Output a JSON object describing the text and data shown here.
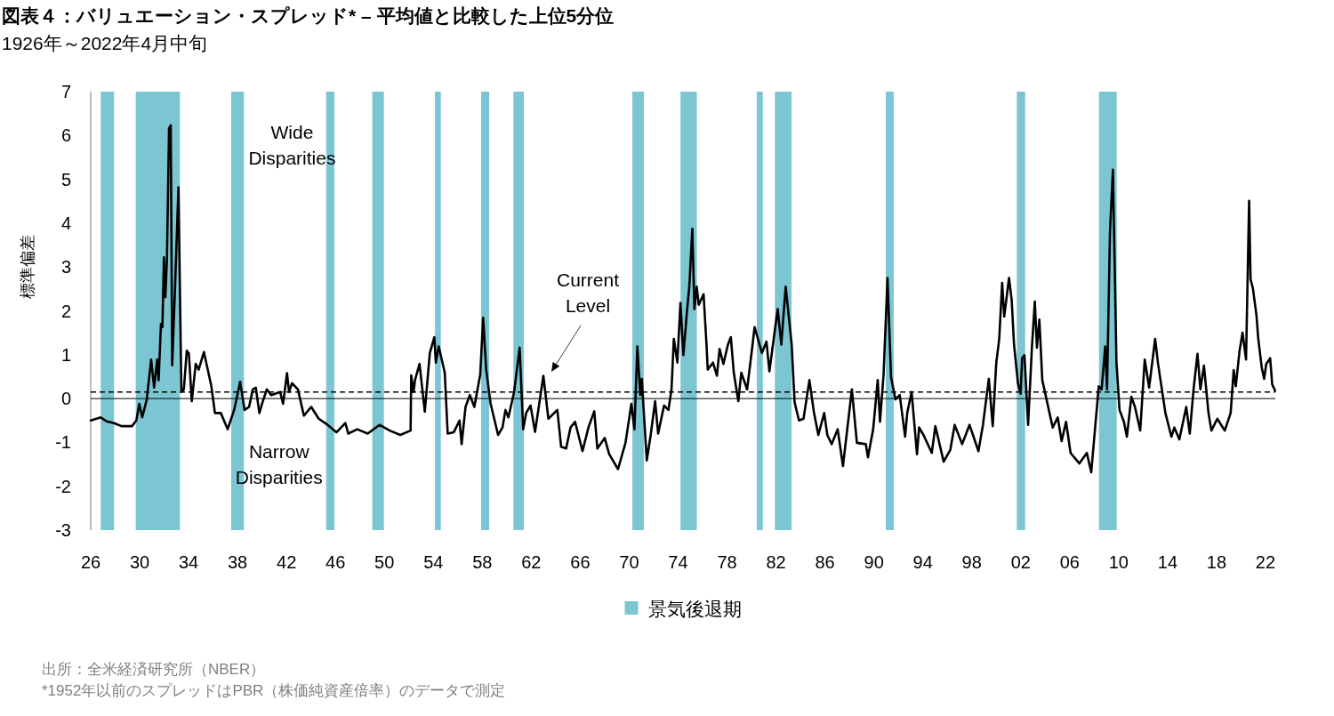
{
  "chart_data": {
    "type": "line",
    "title": "図表４：バリュエーション・スプレッド* – 平均値と比較した上位5分位",
    "subtitle": "1926年～2022年4月中旬",
    "ylabel": "標準偏差",
    "x": [
      1926.0,
      1926.82,
      1927.31,
      1927.91,
      1928.52,
      1929.37,
      1929.73,
      1929.97,
      1930.21,
      1930.58,
      1930.94,
      1931.18,
      1931.43,
      1931.55,
      1931.74,
      1931.86,
      1931.98,
      1932.1,
      1932.23,
      1932.4,
      1932.54,
      1932.66,
      1932.88,
      1933.17,
      1933.41,
      1933.61,
      1933.85,
      1934.02,
      1934.26,
      1934.58,
      1934.82,
      1935.25,
      1935.54,
      1935.86,
      1936.15,
      1936.63,
      1937.19,
      1937.72,
      1938.04,
      1938.21,
      1938.57,
      1938.94,
      1939.25,
      1939.49,
      1939.78,
      1940.03,
      1940.39,
      1940.75,
      1941.48,
      1941.72,
      1942.04,
      1942.21,
      1942.45,
      1942.93,
      1943.42,
      1944.02,
      1944.63,
      1945.36,
      1946.08,
      1946.81,
      1947.05,
      1947.78,
      1948.63,
      1949.6,
      1950.44,
      1951.29,
      1952.14,
      1952.19,
      1952.38,
      1952.5,
      1952.87,
      1953.3,
      1953.71,
      1954.08,
      1954.2,
      1954.44,
      1954.93,
      1955.17,
      1955.66,
      1956.14,
      1956.31,
      1956.63,
      1956.98,
      1957.35,
      1957.83,
      1958.07,
      1958.32,
      1958.68,
      1959.29,
      1959.65,
      1959.89,
      1960.13,
      1960.6,
      1961.05,
      1961.34,
      1961.58,
      1961.94,
      1962.31,
      1962.99,
      1963.4,
      1964.13,
      1964.44,
      1964.85,
      1965.21,
      1965.58,
      1966.19,
      1966.67,
      1967.15,
      1967.4,
      1968.0,
      1968.37,
      1969.09,
      1969.7,
      1970.18,
      1970.43,
      1970.67,
      1970.91,
      1971.03,
      1971.44,
      1971.76,
      1972.12,
      1972.37,
      1972.85,
      1973.21,
      1973.46,
      1973.65,
      1973.94,
      1974.19,
      1974.43,
      1974.72,
      1974.92,
      1975.16,
      1975.33,
      1975.52,
      1975.69,
      1976.08,
      1976.32,
      1976.42,
      1976.85,
      1977.17,
      1977.39,
      1977.7,
      1978.07,
      1978.31,
      1978.55,
      1978.92,
      1979.16,
      1979.64,
      1980.01,
      1980.25,
      1980.85,
      1981.22,
      1981.46,
      1981.94,
      1982.14,
      1982.43,
      1982.79,
      1983.28,
      1983.52,
      1983.88,
      1984.25,
      1984.73,
      1985.09,
      1985.46,
      1985.94,
      1986.19,
      1986.55,
      1987.04,
      1987.47,
      1987.88,
      1988.2,
      1988.61,
      1989.34,
      1989.51,
      1989.94,
      1990.31,
      1990.5,
      1990.79,
      1991.11,
      1991.4,
      1991.76,
      1992.11,
      1992.55,
      1992.72,
      1993.08,
      1993.52,
      1993.69,
      1994.05,
      1994.73,
      1995.02,
      1995.7,
      1996.24,
      1996.6,
      1997.21,
      1997.81,
      1998.18,
      1998.54,
      1998.91,
      1999.39,
      1999.71,
      2000.0,
      2000.24,
      2000.48,
      2000.65,
      2001.04,
      2001.26,
      2001.45,
      2001.77,
      2001.99,
      2002.11,
      2002.3,
      2002.6,
      2002.91,
      2003.15,
      2003.32,
      2003.52,
      2003.76,
      2004.61,
      2005.02,
      2005.34,
      2005.7,
      2006.07,
      2006.79,
      2007.4,
      2007.76,
      2008.37,
      2008.61,
      2008.9,
      2009.05,
      2009.29,
      2009.53,
      2009.82,
      2010.07,
      2010.43,
      2010.67,
      2011.04,
      2011.33,
      2011.76,
      2012.13,
      2012.49,
      2012.98,
      2013.22,
      2013.82,
      2014.31,
      2014.55,
      2014.96,
      2015.52,
      2015.81,
      2016.12,
      2016.44,
      2016.68,
      2016.97,
      2017.34,
      2017.58,
      2018.06,
      2018.67,
      2019.15,
      2019.4,
      2019.57,
      2019.88,
      2020.12,
      2020.41,
      2020.66,
      2020.78,
      2020.97,
      2021.26,
      2021.41,
      2021.7,
      2021.89,
      2022.06,
      2022.38,
      2022.55,
      2022.79
    ],
    "series": [
      {
        "color": "#000000",
        "values": [
          -0.5,
          -0.43,
          -0.52,
          -0.56,
          -0.63,
          -0.63,
          -0.5,
          -0.12,
          -0.43,
          -0.02,
          0.89,
          0.25,
          0.89,
          0.42,
          1.7,
          1.63,
          3.22,
          2.31,
          3.19,
          6.16,
          6.23,
          0.76,
          2.45,
          4.82,
          0.15,
          0.21,
          1.09,
          1.03,
          -0.06,
          0.79,
          0.66,
          1.06,
          0.69,
          0.28,
          -0.33,
          -0.33,
          -0.7,
          -0.26,
          0.15,
          0.38,
          -0.26,
          -0.19,
          0.21,
          0.25,
          -0.33,
          -0.09,
          0.21,
          0.08,
          0.15,
          -0.12,
          0.58,
          0.15,
          0.35,
          0.21,
          -0.39,
          -0.19,
          -0.46,
          -0.6,
          -0.77,
          -0.56,
          -0.8,
          -0.7,
          -0.8,
          -0.6,
          -0.73,
          -0.83,
          -0.73,
          0.53,
          0.15,
          0.42,
          0.79,
          -0.3,
          1.04,
          1.4,
          0.82,
          1.19,
          0.59,
          -0.8,
          -0.77,
          -0.5,
          -1.04,
          -0.19,
          0.08,
          -0.19,
          0.55,
          1.84,
          0.65,
          -0.12,
          -0.83,
          -0.66,
          -0.26,
          -0.43,
          0.15,
          1.16,
          -0.7,
          -0.33,
          -0.16,
          -0.76,
          0.52,
          -0.46,
          -0.26,
          -1.1,
          -1.14,
          -0.66,
          -0.53,
          -1.2,
          -0.66,
          -0.29,
          -1.14,
          -0.9,
          -1.27,
          -1.61,
          -1.01,
          -0.12,
          -0.7,
          1.19,
          0.08,
          0.45,
          -1.41,
          -0.83,
          -0.06,
          -0.8,
          -0.16,
          -0.26,
          0.21,
          1.36,
          0.82,
          2.18,
          0.99,
          1.97,
          2.58,
          3.87,
          2.04,
          2.55,
          2.14,
          2.38,
          1.23,
          0.66,
          0.82,
          0.52,
          1.13,
          0.79,
          1.23,
          1.4,
          0.59,
          -0.06,
          0.59,
          0.21,
          1.06,
          1.63,
          1.04,
          1.3,
          0.62,
          1.63,
          2.04,
          1.23,
          2.55,
          1.23,
          -0.09,
          -0.5,
          -0.46,
          0.42,
          -0.3,
          -0.83,
          -0.33,
          -0.83,
          -1.04,
          -0.7,
          -1.54,
          -0.56,
          0.21,
          -1.01,
          -1.04,
          -1.34,
          -0.7,
          0.42,
          -0.53,
          0.55,
          2.75,
          0.49,
          -0.02,
          0.08,
          -0.87,
          -0.33,
          0.15,
          -1.27,
          -0.66,
          -0.83,
          -1.24,
          -0.63,
          -1.44,
          -1.17,
          -0.6,
          -1.04,
          -0.6,
          -0.9,
          -1.2,
          -0.6,
          0.45,
          -0.63,
          0.82,
          1.36,
          2.64,
          1.87,
          2.75,
          2.24,
          1.23,
          0.35,
          0.11,
          0.92,
          0.99,
          -0.6,
          1.16,
          2.21,
          1.16,
          1.8,
          0.42,
          -0.66,
          -0.43,
          -0.97,
          -0.53,
          -1.24,
          -1.48,
          -1.24,
          -1.68,
          0.28,
          0.21,
          1.19,
          0.21,
          3.8,
          5.22,
          0.82,
          -0.26,
          -0.53,
          -0.87,
          0.04,
          -0.19,
          -0.73,
          0.89,
          0.25,
          1.36,
          0.79,
          -0.33,
          -0.87,
          -0.66,
          -0.93,
          -0.19,
          -0.8,
          0.21,
          1.02,
          0.21,
          0.75,
          -0.33,
          -0.73,
          -0.46,
          -0.73,
          -0.33,
          0.65,
          0.28,
          1.09,
          1.5,
          0.89,
          4.51,
          2.72,
          2.51,
          1.9,
          1.36,
          0.69,
          0.45,
          0.79,
          0.92,
          0.32,
          0.18
        ]
      }
    ],
    "xlim": [
      1926,
      2022.8
    ],
    "xticks": [
      {
        "value": 1926,
        "label": "26"
      },
      {
        "value": 1930,
        "label": "30"
      },
      {
        "value": 1934,
        "label": "34"
      },
      {
        "value": 1938,
        "label": "38"
      },
      {
        "value": 1942,
        "label": "42"
      },
      {
        "value": 1946,
        "label": "46"
      },
      {
        "value": 1950,
        "label": "50"
      },
      {
        "value": 1954,
        "label": "54"
      },
      {
        "value": 1958,
        "label": "58"
      },
      {
        "value": 1962,
        "label": "62"
      },
      {
        "value": 1966,
        "label": "66"
      },
      {
        "value": 1970,
        "label": "70"
      },
      {
        "value": 1974,
        "label": "74"
      },
      {
        "value": 1978,
        "label": "78"
      },
      {
        "value": 1982,
        "label": "82"
      },
      {
        "value": 1986,
        "label": "86"
      },
      {
        "value": 1990,
        "label": "90"
      },
      {
        "value": 1994,
        "label": "94"
      },
      {
        "value": 1998,
        "label": "98"
      },
      {
        "value": 2002,
        "label": "02"
      },
      {
        "value": 2006,
        "label": "06"
      },
      {
        "value": 2010,
        "label": "10"
      },
      {
        "value": 2014,
        "label": "14"
      },
      {
        "value": 2018,
        "label": "18"
      },
      {
        "value": 2022,
        "label": "22"
      }
    ],
    "ylim": [
      -3,
      7
    ],
    "yticks": [
      -3,
      -2,
      -1,
      0,
      1,
      2,
      3,
      4,
      5,
      6,
      7
    ],
    "ref_lines": [
      {
        "axis": "y",
        "value": 0,
        "color": "#000000",
        "line_style": "solid"
      },
      {
        "axis": "y",
        "value": 0.15,
        "color": "#000000",
        "line_style": "dashed"
      }
    ],
    "bands": [
      {
        "axis": "x",
        "from": 1926.82,
        "to": 1927.91,
        "color": "#7cc6d3",
        "label": "景気後退期"
      },
      {
        "axis": "x",
        "from": 1929.68,
        "to": 1933.29,
        "color": "#7cc6d3"
      },
      {
        "axis": "x",
        "from": 1937.48,
        "to": 1938.52,
        "color": "#7cc6d3"
      },
      {
        "axis": "x",
        "from": 1945.24,
        "to": 1945.91,
        "color": "#7cc6d3"
      },
      {
        "axis": "x",
        "from": 1949.01,
        "to": 1949.96,
        "color": "#7cc6d3"
      },
      {
        "axis": "x",
        "from": 1954.13,
        "to": 1954.61,
        "color": "#7cc6d3"
      },
      {
        "axis": "x",
        "from": 1957.9,
        "to": 1958.56,
        "color": "#7cc6d3"
      },
      {
        "axis": "x",
        "from": 1960.54,
        "to": 1961.39,
        "color": "#7cc6d3"
      },
      {
        "axis": "x",
        "from": 1970.26,
        "to": 1971.2,
        "color": "#7cc6d3"
      },
      {
        "axis": "x",
        "from": 1974.2,
        "to": 1975.53,
        "color": "#7cc6d3"
      },
      {
        "axis": "x",
        "from": 1980.43,
        "to": 1980.92,
        "color": "#7cc6d3"
      },
      {
        "axis": "x",
        "from": 1981.91,
        "to": 1983.27,
        "color": "#7cc6d3"
      },
      {
        "axis": "x",
        "from": 1990.97,
        "to": 1991.62,
        "color": "#7cc6d3"
      },
      {
        "axis": "x",
        "from": 2001.68,
        "to": 2002.36,
        "color": "#7cc6d3"
      },
      {
        "axis": "x",
        "from": 2008.39,
        "to": 2009.84,
        "color": "#7cc6d3"
      }
    ],
    "annotations": [
      "Wide\nDisparities",
      "Current\nLevel",
      "Narrow\nDisparities",
      "出所：全米経済研究所（NBER）",
      "*1952年以前のスプレッドはPBR（株価純資産倍率）のデータで測定"
    ],
    "legend": "bottom"
  }
}
